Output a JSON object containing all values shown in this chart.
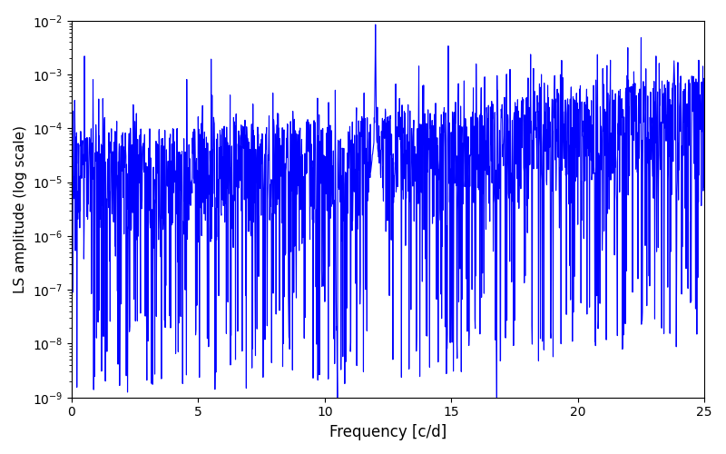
{
  "title": "",
  "xlabel": "Frequency [c/d]",
  "ylabel": "LS amplitude (log scale)",
  "xlim": [
    0,
    25
  ],
  "ylim_min_exp": -9,
  "ylim_max_exp": -2,
  "line_color": "#0000ff",
  "line_width": 0.8,
  "figsize": [
    8.0,
    5.0
  ],
  "dpi": 100,
  "freq_min": 0.0,
  "freq_max": 25.0,
  "n_points": 2000,
  "seed": 17,
  "main_peak_freq": 12.0,
  "main_peak_amp": 0.0085,
  "secondary_peak_freq": 23.8,
  "secondary_peak_amp": 0.0018,
  "baseline_log_mean": -5.0,
  "baseline_log_std": 0.7,
  "noise_floor_log": -9.0,
  "bg_color": "#ffffff",
  "xlabel_fontsize": 12,
  "ylabel_fontsize": 11
}
